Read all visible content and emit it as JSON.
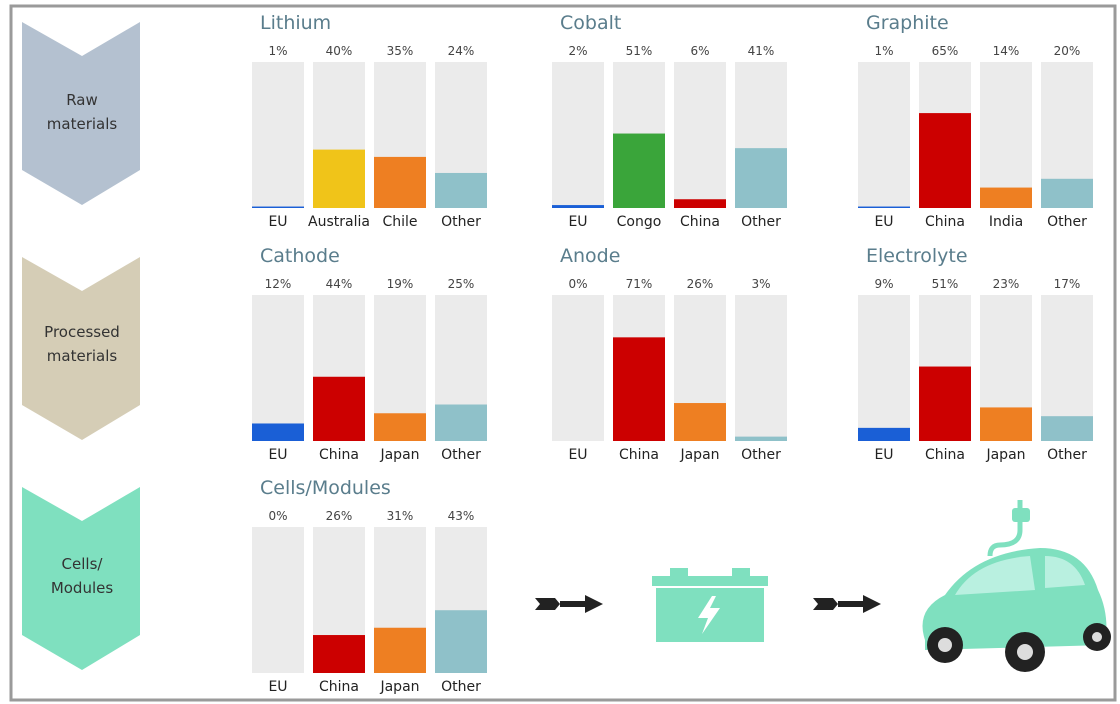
{
  "stages": [
    "Raw materials",
    "Processed materials",
    "Cells/ Modules"
  ],
  "chart_data": [
    {
      "type": "bar",
      "title": "Lithium",
      "categories": [
        "EU",
        "Australia",
        "Chile",
        "Other"
      ],
      "values": [
        1,
        40,
        35,
        24
      ],
      "value_labels": [
        "1%",
        "40%",
        "35%",
        "24%"
      ],
      "colors": [
        "#1a5fd6",
        "#f0c419",
        "#ee7f22",
        "#8fc1c9"
      ],
      "ylim": [
        0,
        100
      ]
    },
    {
      "type": "bar",
      "title": "Cobalt",
      "categories": [
        "EU",
        "Congo",
        "China",
        "Other"
      ],
      "values": [
        2,
        51,
        6,
        41
      ],
      "value_labels": [
        "2%",
        "51%",
        "6%",
        "41%"
      ],
      "colors": [
        "#1a5fd6",
        "#3aa53a",
        "#cc0000",
        "#8fc1c9"
      ],
      "ylim": [
        0,
        100
      ]
    },
    {
      "type": "bar",
      "title": "Graphite",
      "categories": [
        "EU",
        "China",
        "India",
        "Other"
      ],
      "values": [
        1,
        65,
        14,
        20
      ],
      "value_labels": [
        "1%",
        "65%",
        "14%",
        "20%"
      ],
      "colors": [
        "#1a5fd6",
        "#cc0000",
        "#ee7f22",
        "#8fc1c9"
      ],
      "ylim": [
        0,
        100
      ]
    },
    {
      "type": "bar",
      "title": "Cathode",
      "categories": [
        "EU",
        "China",
        "Japan",
        "Other"
      ],
      "values": [
        12,
        44,
        19,
        25
      ],
      "value_labels": [
        "12%",
        "44%",
        "19%",
        "25%"
      ],
      "colors": [
        "#1a5fd6",
        "#cc0000",
        "#ee7f22",
        "#8fc1c9"
      ],
      "ylim": [
        0,
        100
      ]
    },
    {
      "type": "bar",
      "title": "Anode",
      "categories": [
        "EU",
        "China",
        "Japan",
        "Other"
      ],
      "values": [
        0,
        71,
        26,
        3
      ],
      "value_labels": [
        "0%",
        "71%",
        "26%",
        "3%"
      ],
      "colors": [
        "#1a5fd6",
        "#cc0000",
        "#ee7f22",
        "#8fc1c9"
      ],
      "ylim": [
        0,
        100
      ]
    },
    {
      "type": "bar",
      "title": "Electrolyte",
      "categories": [
        "EU",
        "China",
        "Japan",
        "Other"
      ],
      "values": [
        9,
        51,
        23,
        17
      ],
      "value_labels": [
        "9%",
        "51%",
        "23%",
        "17%"
      ],
      "colors": [
        "#1a5fd6",
        "#cc0000",
        "#ee7f22",
        "#8fc1c9"
      ],
      "ylim": [
        0,
        100
      ]
    },
    {
      "type": "bar",
      "title": "Cells/Modules",
      "categories": [
        "EU",
        "China",
        "Japan",
        "Other"
      ],
      "values": [
        0,
        26,
        31,
        43
      ],
      "value_labels": [
        "0%",
        "26%",
        "31%",
        "43%"
      ],
      "colors": [
        "#1a5fd6",
        "#cc0000",
        "#ee7f22",
        "#8fc1c9"
      ],
      "ylim": [
        0,
        100
      ]
    }
  ]
}
